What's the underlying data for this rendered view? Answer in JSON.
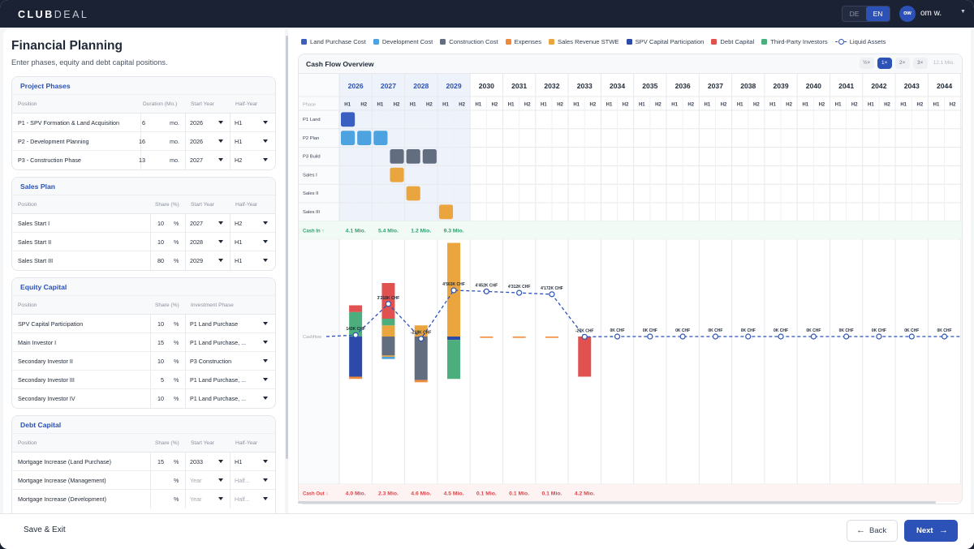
{
  "app": {
    "logo_bold": "CLUB",
    "logo_light": "DEAL",
    "languages": [
      "DE",
      "EN"
    ],
    "active_language": "EN",
    "avatar_initials": "ow",
    "user_name": "om w."
  },
  "page": {
    "title": "Financial Planning",
    "subtitle": "Enter phases, equity and debt capital positions."
  },
  "project_phases": {
    "title": "Project Phases",
    "headers": [
      "Position",
      "Duration (Mo.)",
      "Start Year",
      "Half-Year"
    ],
    "unit": "mo.",
    "rows": [
      {
        "position": "P1 - SPV Formation & Land Acquisition",
        "duration": "6",
        "start_year": "2026",
        "half_year": "H1"
      },
      {
        "position": "P2 - Development Planning",
        "duration": "16",
        "start_year": "2026",
        "half_year": "H1"
      },
      {
        "position": "P3 - Construction Phase",
        "duration": "13",
        "start_year": "2027",
        "half_year": "H2"
      }
    ]
  },
  "sales_plan": {
    "title": "Sales Plan",
    "headers": [
      "Position",
      "Share (%)",
      "Start Year",
      "Half-Year"
    ],
    "unit": "%",
    "rows": [
      {
        "position": "Sales Start I",
        "share": "10",
        "start_year": "2027",
        "half_year": "H2"
      },
      {
        "position": "Sales Start II",
        "share": "10",
        "start_year": "2028",
        "half_year": "H1"
      },
      {
        "position": "Sales Start III",
        "share": "80",
        "start_year": "2029",
        "half_year": "H1"
      }
    ]
  },
  "equity_capital": {
    "title": "Equity Capital",
    "headers": [
      "Position",
      "Share (%)",
      "Investment Phase"
    ],
    "unit": "%",
    "rows": [
      {
        "position": "SPV Capital Participation",
        "share": "10",
        "phase": "P1 Land Purchase"
      },
      {
        "position": "Main Investor I",
        "share": "15",
        "phase": "P1 Land Purchase, ..."
      },
      {
        "position": "Secondary Investor II",
        "share": "10",
        "phase": "P3 Construction"
      },
      {
        "position": "Secondary Investor III",
        "share": "5",
        "phase": "P1 Land Purchase, ..."
      },
      {
        "position": "Secondary Investor IV",
        "share": "10",
        "phase": "P1 Land Purchase, ..."
      }
    ]
  },
  "debt_capital": {
    "title": "Debt Capital",
    "headers": [
      "Position",
      "Share (%)",
      "Start Year",
      "Half-Year"
    ],
    "unit": "%",
    "placeholder_year": "Year",
    "placeholder_half": "Half...",
    "rows": [
      {
        "position": "Mortgage Increase (Land Purchase)",
        "share": "15",
        "start_year": "2033",
        "half_year": "H1"
      },
      {
        "position": "Mortgage Increase (Management)",
        "share": "",
        "start_year": "",
        "half_year": ""
      },
      {
        "position": "Mortgage Increase (Development)",
        "share": "",
        "start_year": "",
        "half_year": ""
      }
    ]
  },
  "legend": [
    {
      "label": "Land Purchase Cost",
      "color": "#3b5fc0"
    },
    {
      "label": "Development Cost",
      "color": "#4da3e0"
    },
    {
      "label": "Construction Cost",
      "color": "#626d80"
    },
    {
      "label": "Expenses",
      "color": "#ef8a3a"
    },
    {
      "label": "Sales Revenue STWE",
      "color": "#eba53e"
    },
    {
      "label": "SPV Capital Participation",
      "color": "#2d4aa8"
    },
    {
      "label": "Debt Capital",
      "color": "#e0514f"
    },
    {
      "label": "Third-Party Investors",
      "color": "#4cae7c"
    },
    {
      "label": "Liquid Assets",
      "color": "#2c52b8"
    }
  ],
  "cashflow": {
    "title": "Cash Flow Overview",
    "zoom_options": [
      "½×",
      "1×",
      "2×",
      "3×"
    ],
    "active_zoom": "1×",
    "zoom_info": "12.1 Mio.",
    "years": [
      "2026",
      "2027",
      "2028",
      "2029",
      "2030",
      "2031",
      "2032",
      "2033",
      "2034",
      "2035",
      "2036",
      "2037",
      "2038",
      "2039",
      "2040",
      "2041",
      "2042",
      "2043",
      "2044"
    ],
    "highlight_years": [
      "2026",
      "2027",
      "2028",
      "2029"
    ],
    "halves": [
      "H1",
      "H2"
    ],
    "phase_label": "Phase",
    "phase_rows": [
      {
        "label": "P1 Land",
        "color": "#3b5fc0",
        "blocks": [
          0
        ]
      },
      {
        "label": "P2 Plan",
        "color": "#4da3e0",
        "blocks": [
          0,
          1,
          2
        ]
      },
      {
        "label": "P3 Build",
        "color": "#626d80",
        "blocks": [
          3,
          4,
          5
        ]
      },
      {
        "label": "Sales I",
        "color": "#eba53e",
        "blocks": [
          3
        ]
      },
      {
        "label": "Sales II",
        "color": "#eba53e",
        "blocks": [
          4
        ]
      },
      {
        "label": "Sales III",
        "color": "#eba53e",
        "blocks": [
          6
        ]
      }
    ],
    "cash_in_label": "Cash In ↑",
    "cash_in": [
      "4.1 Mio.",
      "5.4 Mio.",
      "1.2 Mio.",
      "9.3 Mio."
    ],
    "cash_out_label": "Cash Out ↓",
    "cash_out": [
      "4.0 Mio.",
      "2.3 Mio.",
      "4.6 Mio.",
      "4.5 Mio.",
      "0.1 Mio.",
      "0.1 Mio.",
      "0.1 Mio.",
      "4.2 Mio."
    ],
    "cashflow_label": "Cashflow",
    "liquid_labels": [
      "143K CHF",
      "3'218K CHF",
      "-218K CHF",
      "4'563K CHF",
      "4'452K CHF",
      "4'312K CHF",
      "4'172K CHF",
      "-27K CHF",
      "0K CHF",
      "0K CHF",
      "0K CHF",
      "0K CHF",
      "0K CHF",
      "0K CHF",
      "0K CHF",
      "0K CHF",
      "0K CHF",
      "0K CHF",
      "0K CHF"
    ],
    "liquid_values_chf_k": [
      143,
      3218,
      -218,
      4563,
      4452,
      4312,
      4172,
      -27,
      0,
      0,
      0,
      0,
      0,
      0,
      0,
      0,
      0,
      0,
      0
    ],
    "bars_mio": [
      {
        "year": "2026",
        "above": [
          {
            "color": "#4cae7c",
            "v": 1.1
          },
          {
            "color": "#e0514f",
            "v": 0.3
          }
        ],
        "below": [
          {
            "color": "#2d4aa8",
            "v": 1.8
          },
          {
            "color": "#ef8a3a",
            "v": 0.1
          }
        ]
      },
      {
        "year": "2027",
        "above": [
          {
            "color": "#eba53e",
            "v": 0.5
          },
          {
            "color": "#4cae7c",
            "v": 0.3
          },
          {
            "color": "#e0514f",
            "v": 1.6
          }
        ],
        "below": [
          {
            "color": "#626d80",
            "v": 0.85
          },
          {
            "color": "#eba53e",
            "v": 0.05
          },
          {
            "color": "#4da3e0",
            "v": 0.1
          }
        ]
      },
      {
        "year": "2028",
        "above": [
          {
            "color": "#eba53e",
            "v": 0.5
          }
        ],
        "below": [
          {
            "color": "#626d80",
            "v": 1.95
          },
          {
            "color": "#ef8a3a",
            "v": 0.1
          }
        ]
      },
      {
        "year": "2029",
        "above": [
          {
            "color": "#eba53e",
            "v": 4.2
          }
        ],
        "below": [
          {
            "color": "#2d4aa8",
            "v": 0.15
          },
          {
            "color": "#4cae7c",
            "v": 1.75
          }
        ]
      },
      {
        "year": "2030",
        "above": [],
        "below": [
          {
            "color": "#ef8a3a",
            "v": 0.05
          }
        ]
      },
      {
        "year": "2031",
        "above": [],
        "below": [
          {
            "color": "#ef8a3a",
            "v": 0.05
          }
        ]
      },
      {
        "year": "2032",
        "above": [],
        "below": [
          {
            "color": "#ef8a3a",
            "v": 0.05
          }
        ]
      },
      {
        "year": "2033",
        "above": [],
        "below": [
          {
            "color": "#e0514f",
            "v": 1.8
          }
        ]
      }
    ]
  },
  "footer": {
    "save_exit": "Save & Exit",
    "back": "Back",
    "next": "Next"
  }
}
